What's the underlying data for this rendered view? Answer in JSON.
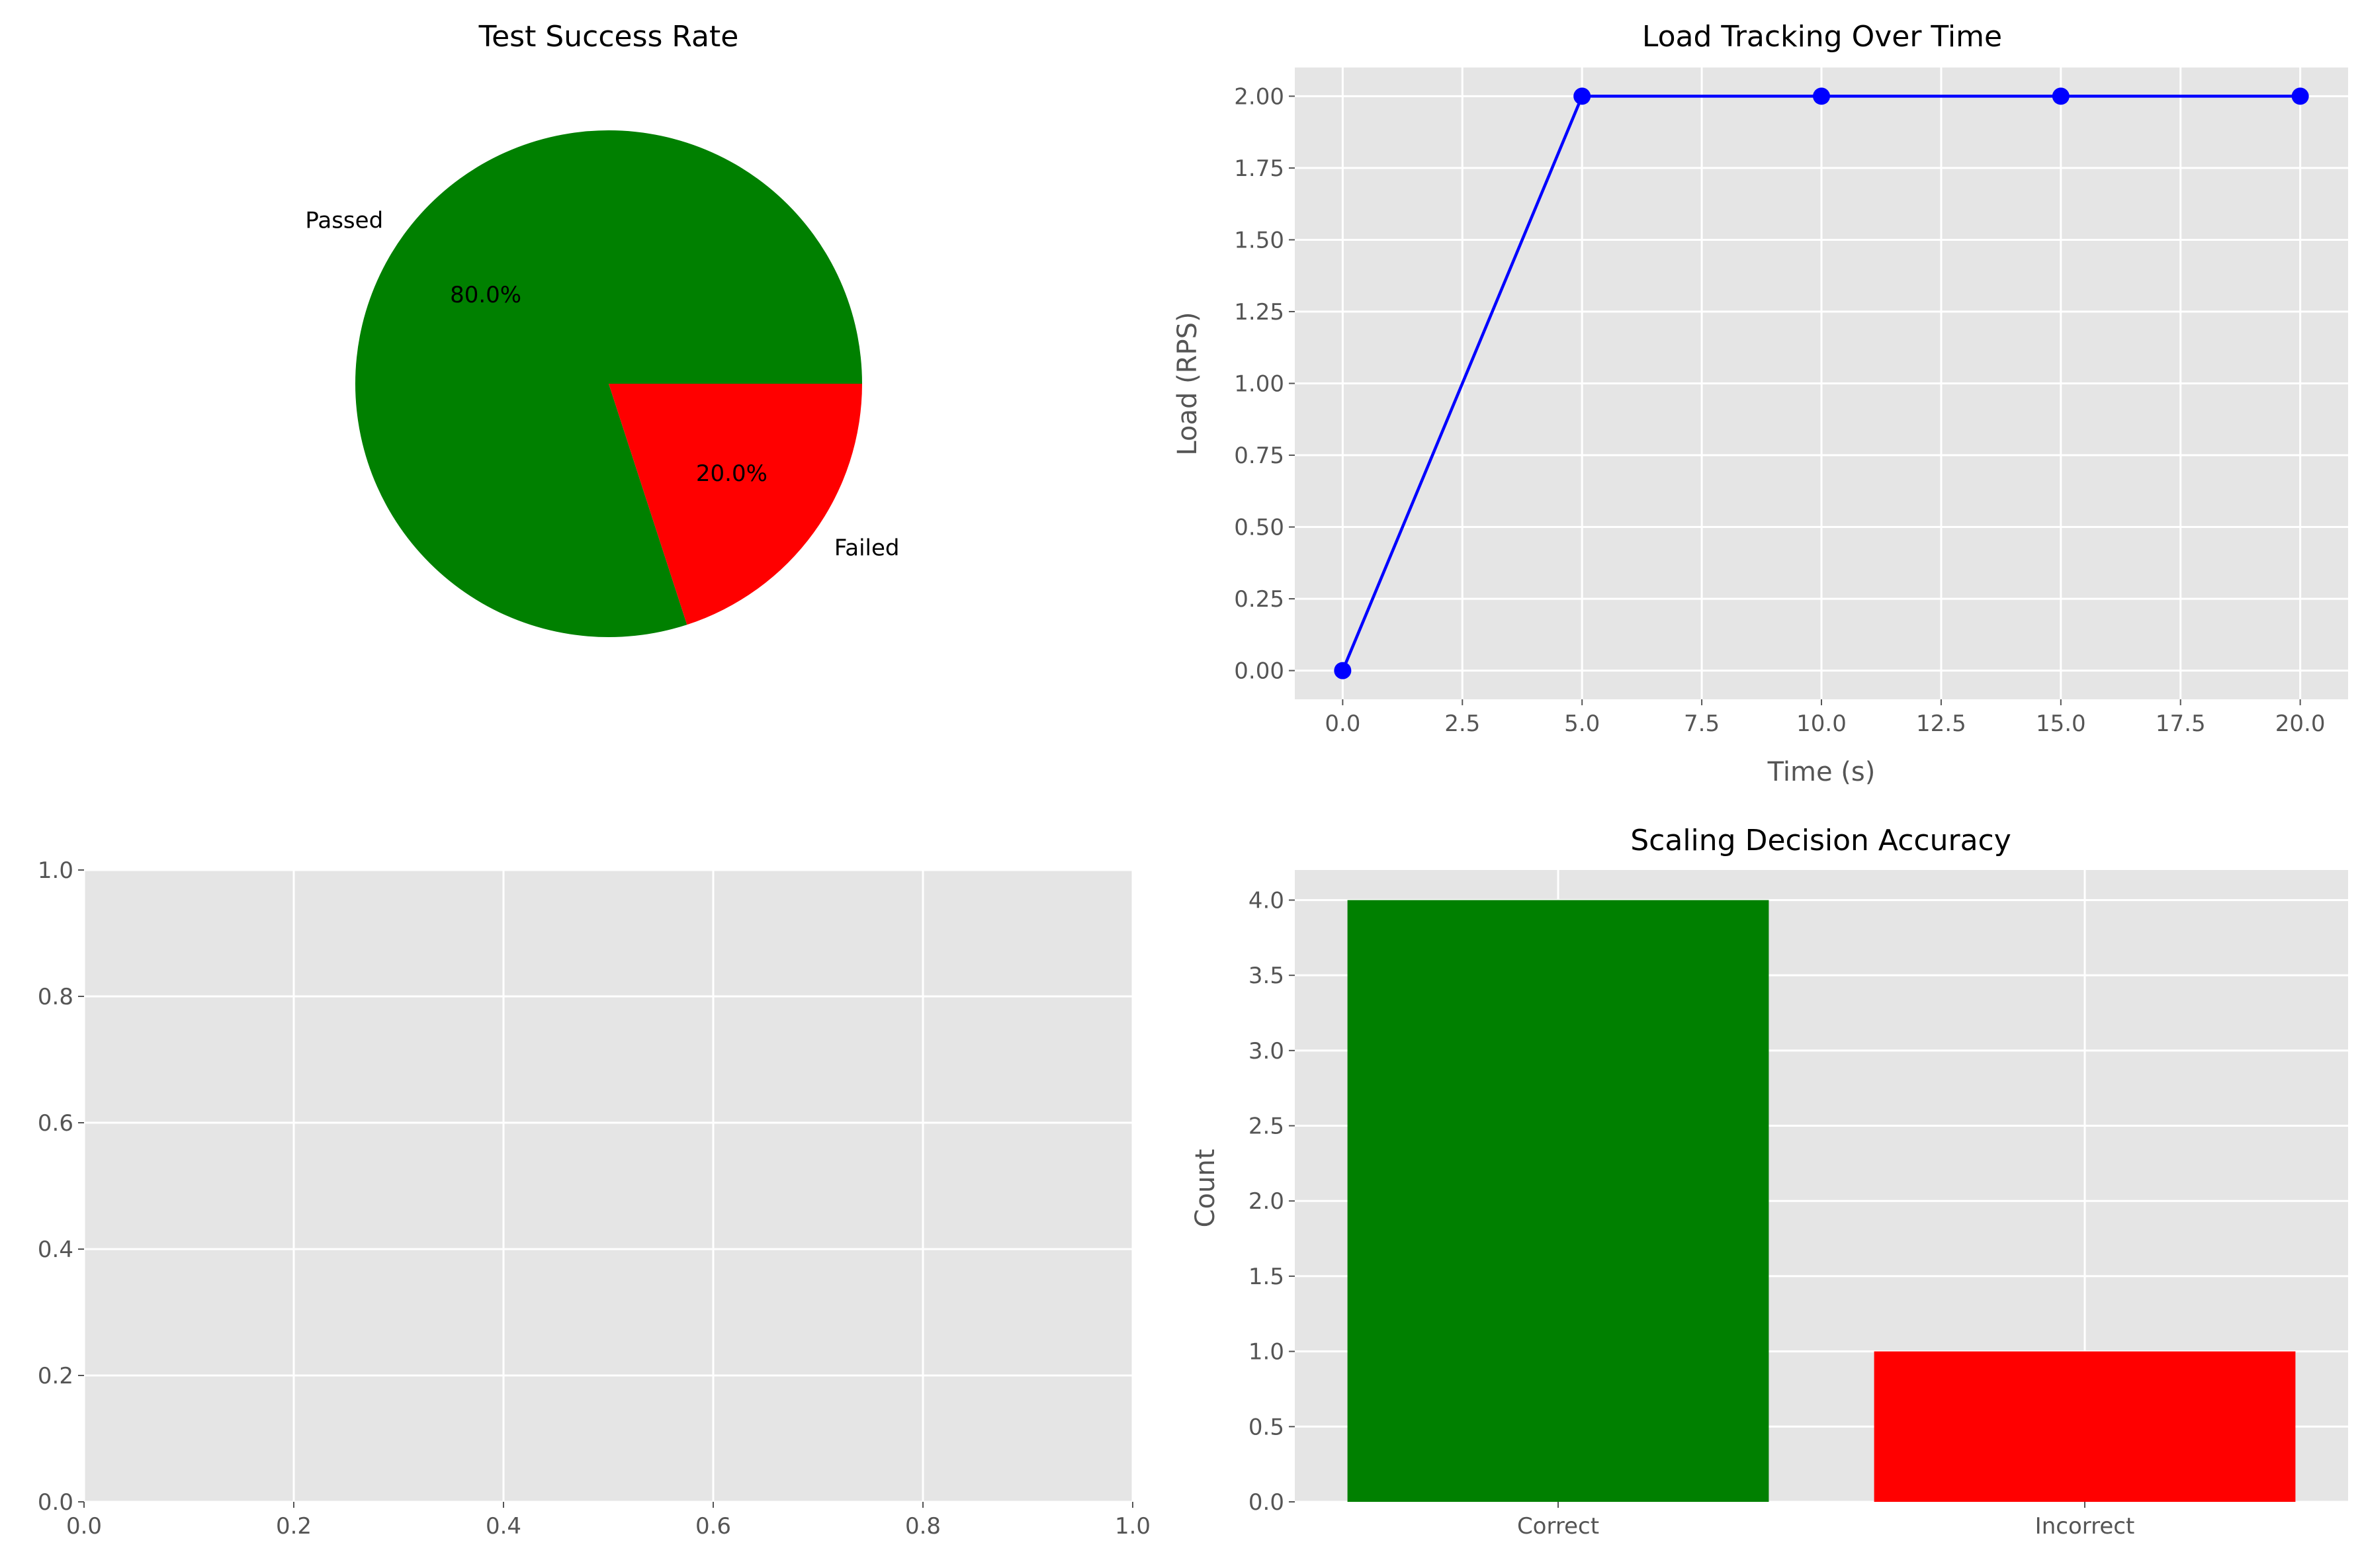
{
  "chart_data": [
    {
      "type": "pie",
      "title": "Test Success Rate",
      "categories": [
        "Passed",
        "Failed"
      ],
      "values": [
        80,
        20
      ],
      "percent_labels": [
        "80.0%",
        "20.0%"
      ],
      "colors": [
        "#008000",
        "#ff0000"
      ]
    },
    {
      "type": "line",
      "title": "Load Tracking Over Time",
      "xlabel": "Time (s)",
      "ylabel": "Load (RPS)",
      "x": [
        0,
        5,
        10,
        15,
        20
      ],
      "y": [
        0,
        2,
        2,
        2,
        2
      ],
      "xlim": [
        -1,
        21
      ],
      "ylim": [
        -0.1,
        2.1
      ],
      "xticks": [
        "0.0",
        "2.5",
        "5.0",
        "7.5",
        "10.0",
        "12.5",
        "15.0",
        "17.5",
        "20.0"
      ],
      "yticks": [
        "0.00",
        "0.25",
        "0.50",
        "0.75",
        "1.00",
        "1.25",
        "1.50",
        "1.75",
        "2.00"
      ],
      "color": "#0000ff",
      "grid": true
    },
    {
      "type": "line",
      "title": "",
      "xlabel": "",
      "ylabel": "",
      "x": [],
      "y": [],
      "xlim": [
        0,
        1
      ],
      "ylim": [
        0,
        1
      ],
      "xticks": [
        "0.0",
        "0.2",
        "0.4",
        "0.6",
        "0.8",
        "1.0"
      ],
      "yticks": [
        "0.0",
        "0.2",
        "0.4",
        "0.6",
        "0.8",
        "1.0"
      ],
      "grid": true
    },
    {
      "type": "bar",
      "title": "Scaling Decision Accuracy",
      "xlabel": "",
      "ylabel": "Count",
      "categories": [
        "Correct",
        "Incorrect"
      ],
      "values": [
        4,
        1
      ],
      "colors": [
        "#008000",
        "#ff0000"
      ],
      "ylim": [
        0,
        4.2
      ],
      "yticks": [
        "0.0",
        "0.5",
        "1.0",
        "1.5",
        "2.0",
        "2.5",
        "3.0",
        "3.5",
        "4.0"
      ],
      "grid": true
    }
  ],
  "style": {
    "axes_background": "#e5e5e5",
    "grid_color": "#ffffff",
    "tick_label_color": "#555555",
    "title_color": "#000000"
  }
}
